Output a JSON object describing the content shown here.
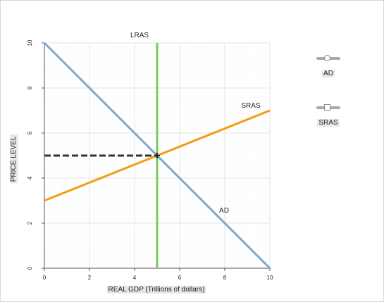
{
  "chart_data": {
    "type": "line",
    "xlabel": "REAL GDP (Trillions of dollars)",
    "ylabel": "PRICE LEVEL",
    "xlim": [
      0,
      10
    ],
    "ylim": [
      0,
      10
    ],
    "x_ticks": [
      0,
      2,
      4,
      6,
      8,
      10
    ],
    "y_ticks": [
      0,
      2,
      4,
      6,
      8,
      10
    ],
    "x_tick_labels": [
      "0",
      "2",
      "4",
      "6",
      "8",
      "10"
    ],
    "y_tick_labels": [
      "0",
      "2",
      "4",
      "6",
      "8",
      "10"
    ],
    "grid": true,
    "series": [
      {
        "name": "AD",
        "label": "AD",
        "x": [
          0,
          10
        ],
        "y": [
          10,
          0
        ],
        "color": "#7fa8d1"
      },
      {
        "name": "SRAS",
        "label": "SRAS",
        "x": [
          0,
          10
        ],
        "y": [
          3,
          7
        ],
        "color": "#f39c12"
      },
      {
        "name": "LRAS",
        "label": "LRAS",
        "x": [
          5,
          5
        ],
        "y": [
          0,
          10
        ],
        "color": "#7cc95b"
      }
    ],
    "guide_line": {
      "x": [
        0,
        5
      ],
      "y": [
        5,
        5
      ],
      "color": "#333333",
      "style": "dashed"
    },
    "equilibrium_point": {
      "x": 5,
      "y": 5
    }
  },
  "legend": {
    "items": [
      {
        "label": "AD",
        "marker": "circle"
      },
      {
        "label": "SRAS",
        "marker": "square"
      }
    ]
  }
}
